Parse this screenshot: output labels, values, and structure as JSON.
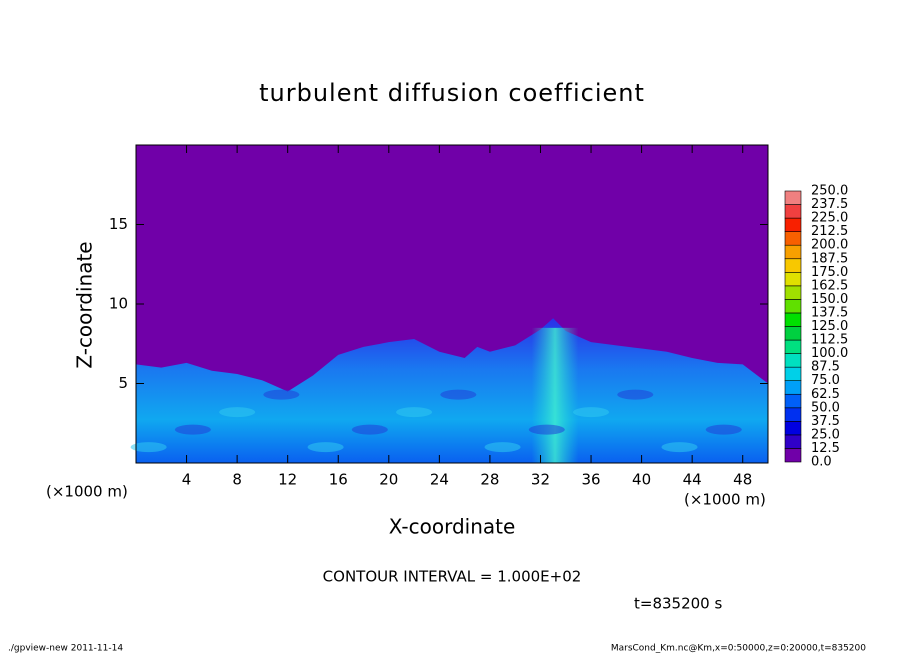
{
  "chart_data": {
    "type": "heatmap",
    "title": "turbulent diffusion coefficient",
    "xlabel": "X-coordinate",
    "ylabel": "Z-coordinate",
    "xunit": "(×1000 m)",
    "xunit_right": "(×1000 m)",
    "xlim": [
      0,
      50
    ],
    "ylim": [
      0,
      20
    ],
    "xticks": [
      4,
      8,
      12,
      16,
      20,
      24,
      28,
      32,
      36,
      40,
      44,
      48
    ],
    "yticks": [
      5,
      10,
      15
    ],
    "colorbar": {
      "ticks": [
        {
          "value": 0,
          "label": "0.0"
        },
        {
          "value": 12.5,
          "label": "12.5"
        },
        {
          "value": 25,
          "label": "25.0"
        },
        {
          "value": 37.5,
          "label": "37.5"
        },
        {
          "value": 50,
          "label": "50.0"
        },
        {
          "value": 62.5,
          "label": "62.5"
        },
        {
          "value": 75,
          "label": "75.0"
        },
        {
          "value": 87.5,
          "label": "87.5"
        },
        {
          "value": 100,
          "label": "100.0"
        },
        {
          "value": 112.5,
          "label": "112.5"
        },
        {
          "value": 125,
          "label": "125.0"
        },
        {
          "value": 137.5,
          "label": "137.5"
        },
        {
          "value": 150,
          "label": "150.0"
        },
        {
          "value": 162.5,
          "label": "162.5"
        },
        {
          "value": 175,
          "label": "175.0"
        },
        {
          "value": 187.5,
          "label": "187.5"
        },
        {
          "value": 200,
          "label": "200.0"
        },
        {
          "value": 212.5,
          "label": "212.5"
        },
        {
          "value": 225,
          "label": "225.0"
        },
        {
          "value": 237.5,
          "label": "237.5"
        },
        {
          "value": 250,
          "label": "250.0"
        }
      ],
      "colors": [
        "#7000a8",
        "#3000c8",
        "#0000e0",
        "#0030f0",
        "#0060f8",
        "#00a0f8",
        "#00d0e8",
        "#00e0c0",
        "#00e080",
        "#00d040",
        "#00e000",
        "#60e000",
        "#a0e000",
        "#e0e000",
        "#f8c800",
        "#f8a000",
        "#f86000",
        "#f82000",
        "#f04040",
        "#f08080"
      ]
    },
    "contour_interval": "CONTOUR INTERVAL = 1.000E+02",
    "time_label": "t=835200 s",
    "footer_left": "./gpview-new   2011-11-14",
    "footer_right": "MarsCond_Km.nc@Km,x=0:50000,z=0:20000,t=835200"
  }
}
